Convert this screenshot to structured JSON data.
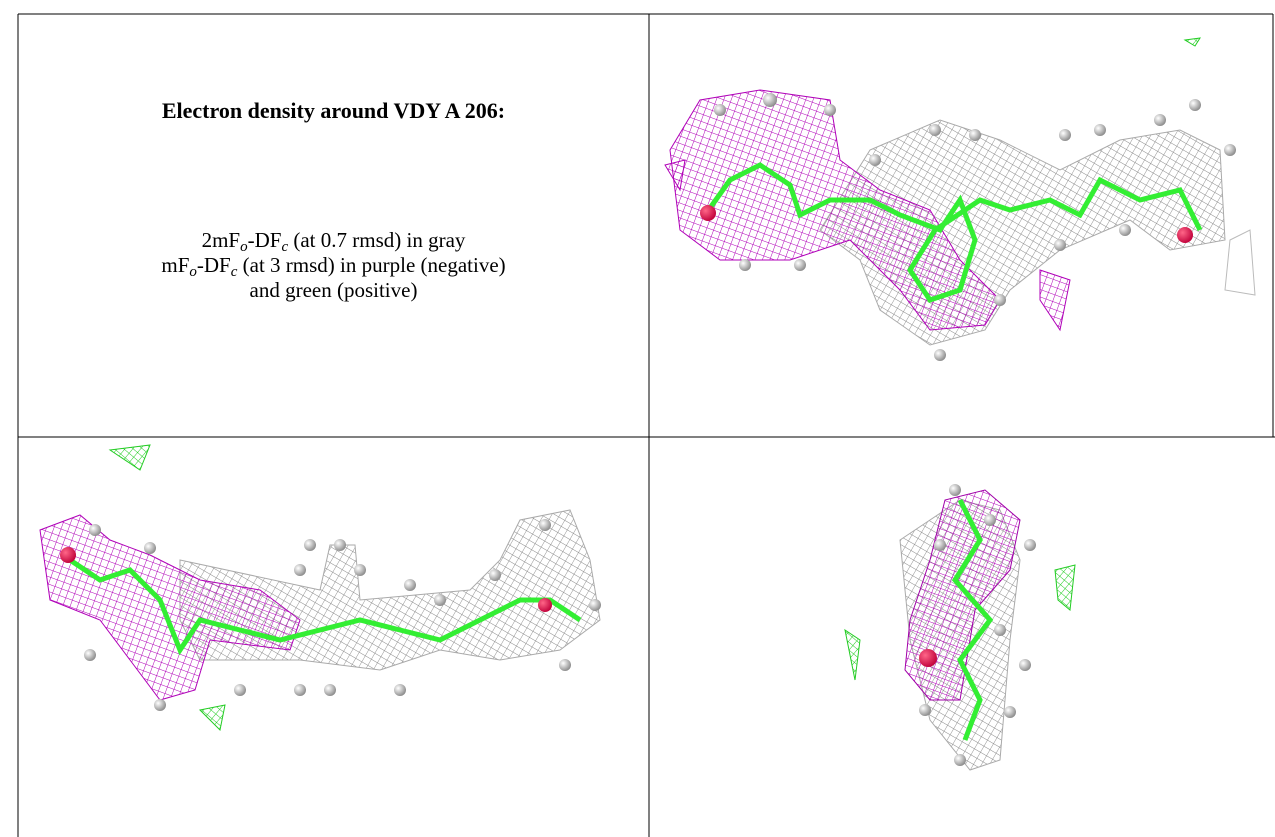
{
  "caption": {
    "title": "Electron density around VDY A 206:",
    "lines": [
      [
        "2mF",
        "o",
        "-DF",
        "c",
        " (at 0.7 rmsd) in gray"
      ],
      [
        "mF",
        "o",
        "-DF",
        "c",
        " (at 3 rmsd) in purple (negative)"
      ],
      [
        "and green (positive)"
      ]
    ]
  }
}
